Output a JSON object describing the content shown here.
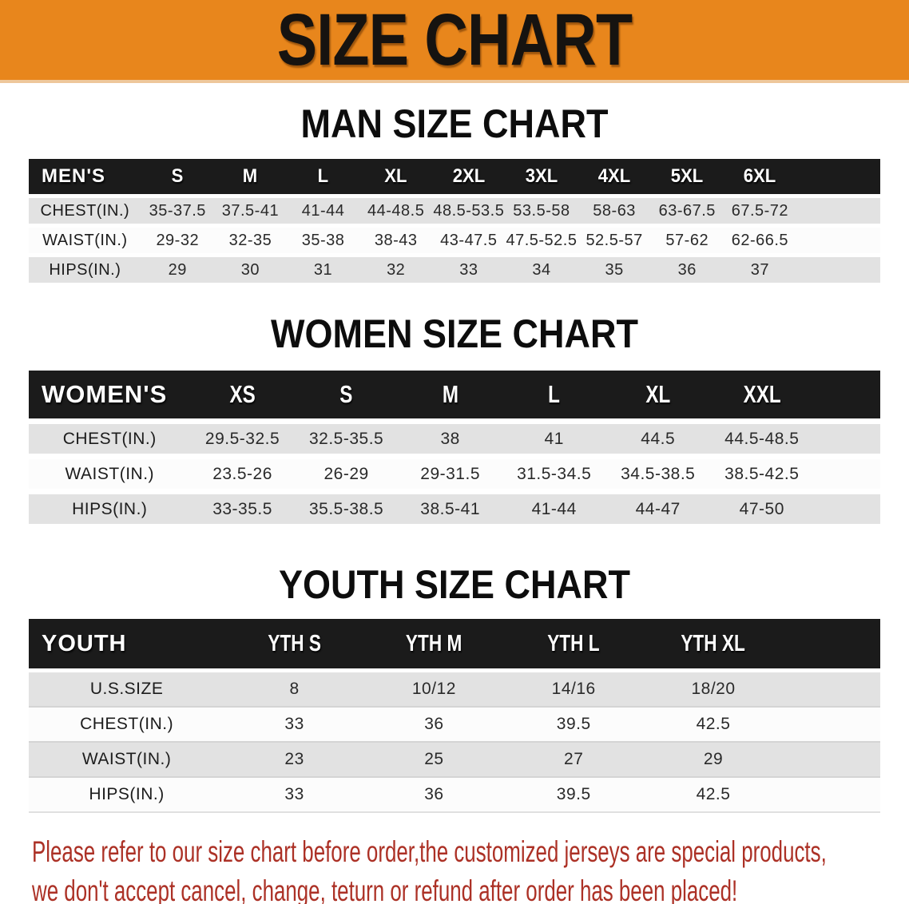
{
  "colors": {
    "banner_orange": "#E8861C",
    "table_header_black": "#1B1B1B",
    "row_stripe_gray": "#E2E2E2",
    "disclaimer_red": "#AC3126"
  },
  "banner": {
    "title": "SIZE CHART"
  },
  "sections": [
    {
      "title": "MAN SIZE CHART",
      "table": {
        "header_label": "MEN'S",
        "columns": [
          "S",
          "M",
          "L",
          "XL",
          "2XL",
          "3XL",
          "4XL",
          "5XL",
          "6XL"
        ],
        "rows": [
          {
            "label": "CHEST(IN.)",
            "values": [
              "35-37.5",
              "37.5-41",
              "41-44",
              "44-48.5",
              "48.5-53.5",
              "53.5-58",
              "58-63",
              "63-67.5",
              "67.5-72"
            ]
          },
          {
            "label": "WAIST(IN.)",
            "values": [
              "29-32",
              "32-35",
              "35-38",
              "38-43",
              "43-47.5",
              "47.5-52.5",
              "52.5-57",
              "57-62",
              "62-66.5"
            ]
          },
          {
            "label": "HIPS(IN.)",
            "values": [
              "29",
              "30",
              "31",
              "32",
              "33",
              "34",
              "35",
              "36",
              "37"
            ]
          }
        ]
      }
    },
    {
      "title": "WOMEN SIZE CHART",
      "table": {
        "header_label": "WOMEN'S",
        "columns": [
          "XS",
          "S",
          "M",
          "L",
          "XL",
          "XXL"
        ],
        "rows": [
          {
            "label": "CHEST(IN.)",
            "values": [
              "29.5-32.5",
              "32.5-35.5",
              "38",
              "41",
              "44.5",
              "44.5-48.5"
            ]
          },
          {
            "label": "WAIST(IN.)",
            "values": [
              "23.5-26",
              "26-29",
              "29-31.5",
              "31.5-34.5",
              "34.5-38.5",
              "38.5-42.5"
            ]
          },
          {
            "label": "HIPS(IN.)",
            "values": [
              "33-35.5",
              "35.5-38.5",
              "38.5-41",
              "41-44",
              "44-47",
              "47-50"
            ]
          }
        ]
      }
    },
    {
      "title": "YOUTH SIZE CHART",
      "table": {
        "header_label": "YOUTH",
        "columns": [
          "YTH S",
          "YTH M",
          "YTH L",
          "YTH XL"
        ],
        "rows": [
          {
            "label": "U.S.SIZE",
            "values": [
              "8",
              "10/12",
              "14/16",
              "18/20"
            ]
          },
          {
            "label": "CHEST(IN.)",
            "values": [
              "33",
              "36",
              "39.5",
              "42.5"
            ]
          },
          {
            "label": "WAIST(IN.)",
            "values": [
              "23",
              "25",
              "27",
              "29"
            ]
          },
          {
            "label": "HIPS(IN.)",
            "values": [
              "33",
              "36",
              "39.5",
              "42.5"
            ]
          }
        ]
      }
    }
  ],
  "disclaimer": {
    "lines": [
      "Please refer to our size chart before order,the customized jerseys are special products,",
      "we don't accept cancel, change, teturn or refund after order has been placed!"
    ]
  }
}
